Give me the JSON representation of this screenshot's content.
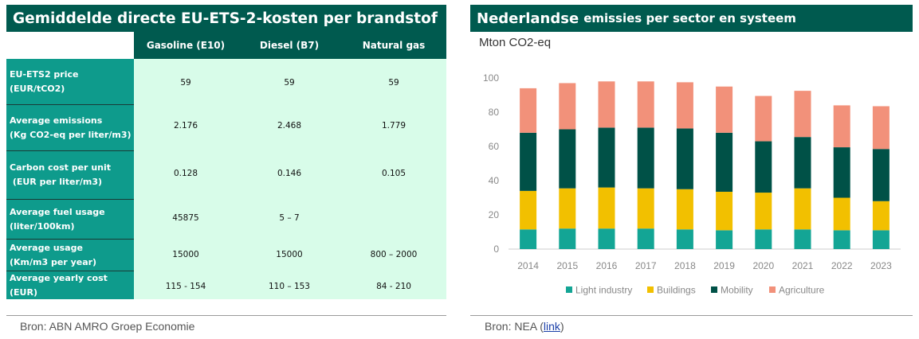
{
  "left_panel": {
    "title": "Gemiddelde directe EU-ETS-2-kosten per brandstof",
    "columns": [
      "Gasoline (E10)",
      "Diesel (B7)",
      "Natural gas"
    ],
    "rows": [
      {
        "label": "EU-ETS2 price\n(EUR/tCO2)",
        "values": [
          "59",
          "59",
          "59"
        ]
      },
      {
        "label": "Average emissions\n(Kg CO2-eq per liter/m3)",
        "values": [
          "2.176",
          "2.468",
          "1.779"
        ]
      },
      {
        "label": "Carbon cost per unit\n (EUR per liter/m3)",
        "values": [
          "0.128",
          "0.146",
          "0.105"
        ]
      },
      {
        "label": "Average fuel usage\n(liter/100km)",
        "values": [
          "45875",
          "5 – 7",
          ""
        ]
      },
      {
        "label": "Average usage\n(Km/m3 per year)",
        "values": [
          "15000",
          "15000",
          "800 – 2000"
        ]
      },
      {
        "label": "Average yearly cost\n(EUR)",
        "values": [
          "115 - 154",
          "110 – 153",
          "84 - 210"
        ]
      }
    ],
    "source": "Bron: ABN AMRO Groep Economie"
  },
  "right_panel": {
    "title_main": "Nederlandse",
    "title_rest": "emissies per sector en systeem",
    "unit": "Mton CO2-eq",
    "source_prefix": "Bron: NEA (",
    "source_link": "link",
    "source_suffix": ")"
  },
  "chart_data": {
    "type": "bar",
    "stacked": true,
    "categories": [
      "2014",
      "2015",
      "2016",
      "2017",
      "2018",
      "2019",
      "2020",
      "2021",
      "2022",
      "2023"
    ],
    "ylim": [
      0,
      100
    ],
    "yticks": [
      0,
      20,
      40,
      60,
      80,
      100
    ],
    "grid": false,
    "legend_position": "bottom",
    "series": [
      {
        "name": "Light industry",
        "color": "#13a595",
        "values": [
          11.5,
          12,
          12,
          12,
          11.5,
          11,
          11.5,
          11.5,
          11,
          11
        ]
      },
      {
        "name": "Buildings",
        "color": "#f2c000",
        "values": [
          22.5,
          23.5,
          24,
          23.5,
          23.5,
          22.5,
          21.5,
          24,
          19,
          17
        ]
      },
      {
        "name": "Mobility",
        "color": "#005147",
        "values": [
          34,
          34.5,
          35,
          35.5,
          35.5,
          34.5,
          30,
          30,
          29.5,
          30.5
        ]
      },
      {
        "name": "Agriculture",
        "color": "#f2917a",
        "values": [
          26,
          27,
          27,
          27,
          27,
          27,
          26.5,
          27,
          24.5,
          25
        ]
      }
    ]
  }
}
